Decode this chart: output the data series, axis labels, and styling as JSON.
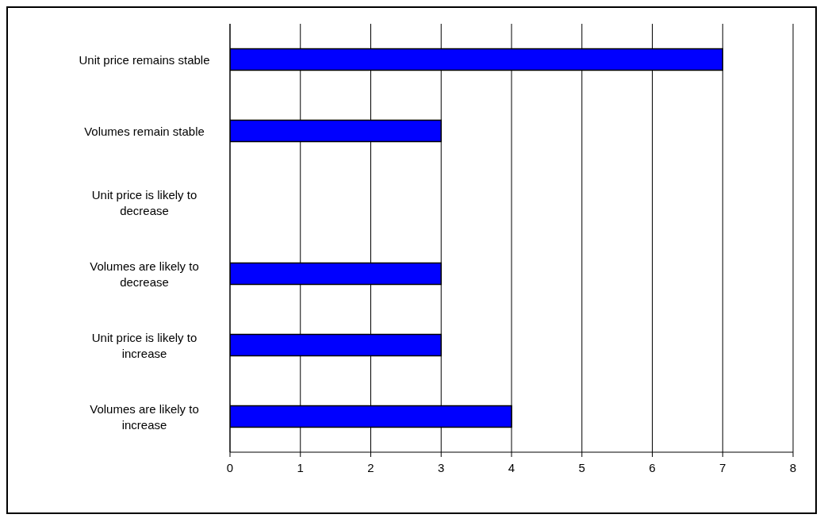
{
  "chart_data": {
    "type": "bar",
    "orientation": "horizontal",
    "categories": [
      "Unit price remains stable",
      "Volumes remain stable",
      "Unit price is likely to decrease",
      "Volumes are likely to decrease",
      "Unit price is likely to increase",
      "Volumes are likely to increase"
    ],
    "values": [
      7,
      3,
      0,
      3,
      3,
      4
    ],
    "color": "#0000ff",
    "xlim": [
      0,
      8
    ],
    "xticks": [
      0,
      1,
      2,
      3,
      4,
      5,
      6,
      7,
      8
    ],
    "grid": "x"
  }
}
